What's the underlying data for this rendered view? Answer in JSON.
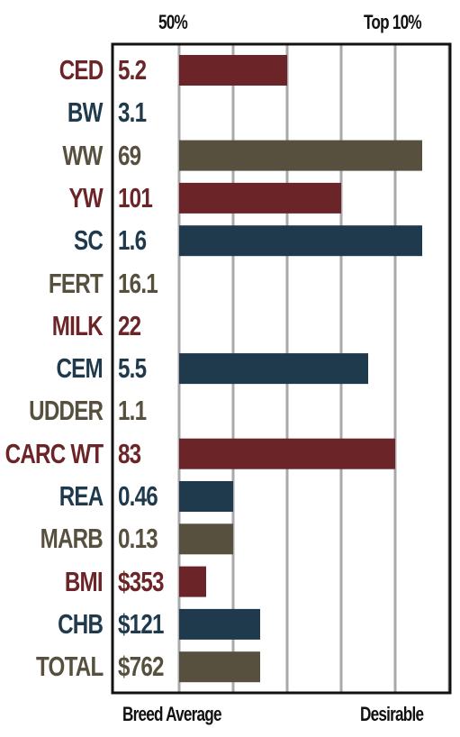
{
  "header": {
    "left": "50%",
    "right": "Top 10%"
  },
  "footer": {
    "left": "Breed Average",
    "right": "Desirable"
  },
  "colors": {
    "red": "#6b2528",
    "blue": "#1f3a4d",
    "gray": "#57503f",
    "grid": "#a8a8ad",
    "frame": "#111111"
  },
  "chart_data": {
    "type": "bar",
    "orientation": "horizontal",
    "categories": [
      "CED",
      "BW",
      "WW",
      "YW",
      "SC",
      "FERT",
      "MILK",
      "CEM",
      "UDDER",
      "CARC WT",
      "REA",
      "MARB",
      "BMI",
      "CHB",
      "TOTAL"
    ],
    "value_labels": [
      "5.2",
      "3.1",
      "69",
      "101",
      "1.6",
      "16.1",
      "22",
      "5.5",
      "1.1",
      "83",
      "0.46",
      "0.13",
      "$353",
      "$121",
      "$762"
    ],
    "bar_lengths": [
      4,
      0,
      9,
      6,
      9,
      0,
      0,
      7,
      0,
      8,
      2,
      2,
      1,
      3,
      3
    ],
    "bar_colors": [
      "red",
      "blue",
      "gray",
      "red",
      "blue",
      "gray",
      "red",
      "blue",
      "gray",
      "red",
      "blue",
      "gray",
      "red",
      "blue",
      "gray"
    ],
    "xlim": [
      0,
      10
    ],
    "grid": true,
    "top_labels": [
      "50%",
      "Top 10%"
    ],
    "bottom_labels": [
      "Breed Average",
      "Desirable"
    ]
  }
}
